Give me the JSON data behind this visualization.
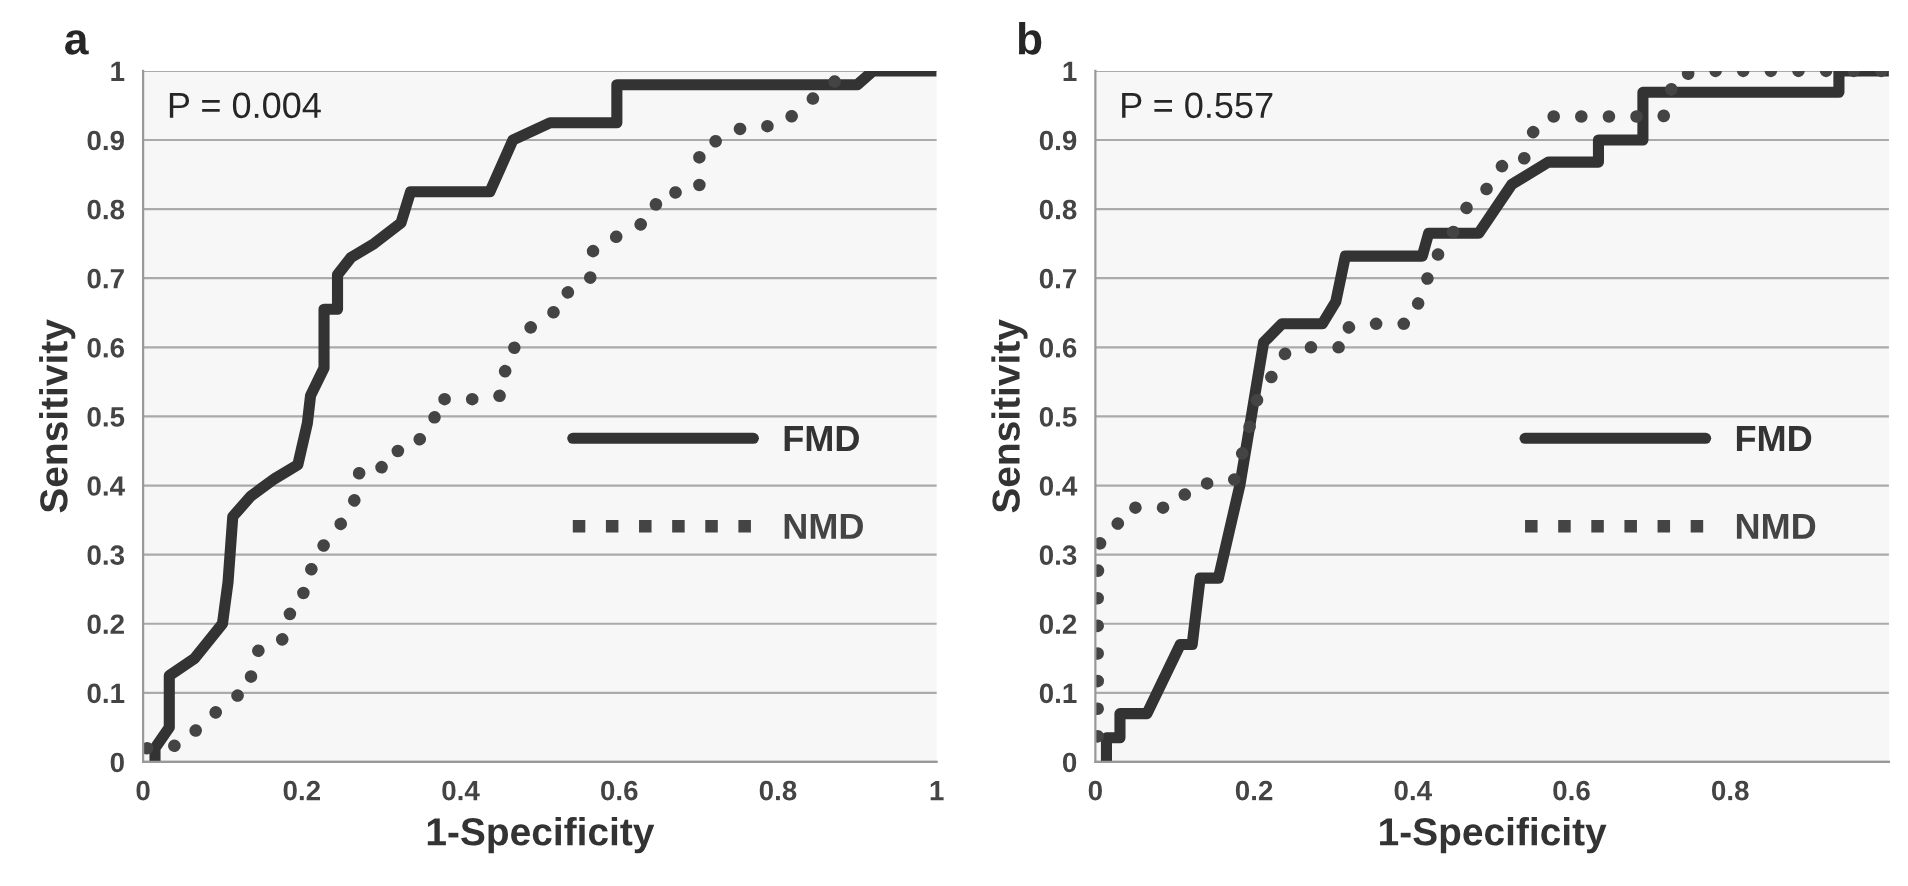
{
  "chart_data": [
    {
      "type": "line",
      "title": "a",
      "xlabel": "1-Specificity",
      "ylabel": "Sensitivity",
      "annotations": [
        "P = 0.004"
      ],
      "xlim": [
        0,
        1
      ],
      "ylim": [
        0,
        1
      ],
      "xticks": [
        0,
        0.2,
        0.4,
        0.6,
        0.8,
        1
      ],
      "yticks": [
        0,
        0.1,
        0.2,
        0.3,
        0.4,
        0.5,
        0.6,
        0.7,
        0.8,
        0.9,
        1
      ],
      "grid": "y",
      "legend": "right",
      "series": [
        {
          "name": "FMD",
          "color": "#333333",
          "line_style": "solid",
          "x": [
            0.015,
            0.015,
            0.033,
            0.033,
            0.065,
            0.1,
            0.107,
            0.113,
            0.136,
            0.166,
            0.195,
            0.207,
            0.211,
            0.228,
            0.228,
            0.245,
            0.245,
            0.262,
            0.291,
            0.325,
            0.337,
            0.437,
            0.466,
            0.513,
            0.597,
            0.597,
            0.9,
            0.92,
            1.0
          ],
          "values": [
            0,
            0.02,
            0.05,
            0.125,
            0.15,
            0.2,
            0.26,
            0.355,
            0.385,
            0.41,
            0.43,
            0.49,
            0.53,
            0.57,
            0.655,
            0.655,
            0.705,
            0.73,
            0.75,
            0.78,
            0.825,
            0.825,
            0.9,
            0.925,
            0.925,
            0.98,
            0.98,
            1.0,
            1.0
          ]
        },
        {
          "name": "NMD",
          "color": "#444444",
          "line_style": "dotted",
          "x": [
            0.005,
            0.03,
            0.057,
            0.075,
            0.096,
            0.117,
            0.136,
            0.136,
            0.147,
            0.174,
            0.185,
            0.185,
            0.202,
            0.202,
            0.219,
            0.228,
            0.246,
            0.263,
            0.27,
            0.273,
            0.3,
            0.308,
            0.337,
            0.354,
            0.367,
            0.368,
            0.397,
            0.425,
            0.45,
            0.45,
            0.467,
            0.468,
            0.481,
            0.5,
            0.517,
            0.523,
            0.55,
            0.567,
            0.567,
            0.585,
            0.602,
            0.623,
            0.644,
            0.648,
            0.676,
            0.701,
            0.701,
            0.701,
            0.726,
            0.747,
            0.772,
            0.801,
            0.818,
            0.833,
            0.883,
            0.9
          ],
          "values": [
            0.02,
            0.02,
            0.03,
            0.06,
            0.075,
            0.095,
            0.105,
            0.14,
            0.165,
            0.175,
            0.195,
            0.225,
            0.24,
            0.27,
            0.285,
            0.315,
            0.34,
            0.365,
            0.395,
            0.425,
            0.425,
            0.45,
            0.45,
            0.475,
            0.49,
            0.525,
            0.525,
            0.525,
            0.53,
            0.56,
            0.575,
            0.605,
            0.625,
            0.635,
            0.65,
            0.675,
            0.685,
            0.705,
            0.74,
            0.75,
            0.765,
            0.775,
            0.79,
            0.82,
            0.825,
            0.83,
            0.86,
            0.89,
            0.9,
            0.915,
            0.92,
            0.92,
            0.935,
            0.95,
            0.995,
            1.0
          ]
        }
      ]
    },
    {
      "type": "line",
      "title": "b",
      "xlabel": "1-Specificity",
      "ylabel": "Sensitivity",
      "annotations": [
        "P = 0.557"
      ],
      "xlim": [
        0,
        1
      ],
      "ylim": [
        0,
        1
      ],
      "xticks": [
        0,
        0.2,
        0.4,
        0.6,
        0.8
      ],
      "yticks": [
        0,
        0.1,
        0.2,
        0.3,
        0.4,
        0.5,
        0.6,
        0.7,
        0.8,
        0.9,
        1
      ],
      "grid": "y",
      "legend": "right",
      "series": [
        {
          "name": "FMD",
          "color": "#333333",
          "line_style": "solid",
          "x": [
            0.014,
            0.014,
            0.031,
            0.031,
            0.065,
            0.107,
            0.122,
            0.132,
            0.155,
            0.182,
            0.196,
            0.202,
            0.212,
            0.235,
            0.286,
            0.303,
            0.315,
            0.412,
            0.42,
            0.483,
            0.525,
            0.571,
            0.634,
            0.634,
            0.69,
            0.69,
            0.937,
            0.937,
            1.0
          ],
          "values": [
            0,
            0.035,
            0.035,
            0.07,
            0.07,
            0.17,
            0.17,
            0.266,
            0.266,
            0.4,
            0.496,
            0.538,
            0.607,
            0.634,
            0.634,
            0.666,
            0.732,
            0.732,
            0.765,
            0.765,
            0.836,
            0.868,
            0.868,
            0.9,
            0.9,
            0.969,
            0.969,
            1.0,
            1.0
          ]
        },
        {
          "name": "NMD",
          "color": "#444444",
          "line_style": "dotted",
          "x": [
            0.003,
            0.003,
            0.003,
            0.004,
            0.014,
            0.034,
            0.04,
            0.07,
            0.098,
            0.112,
            0.124,
            0.154,
            0.176,
            0.206,
            0.227,
            0.235,
            0.254,
            0.282,
            0.311,
            0.313,
            0.338,
            0.366,
            0.393,
            0.406,
            0.408,
            0.42,
            0.424,
            0.439,
            0.466,
            0.49,
            0.514,
            0.538,
            0.546,
            0.555,
            0.576,
            0.66,
            0.716,
            0.731,
            0.782,
            0.92,
            1.0
          ],
          "values": [
            0.037,
            0.138,
            0.257,
            0.312,
            0.335,
            0.349,
            0.368,
            0.368,
            0.368,
            0.386,
            0.403,
            0.403,
            0.409,
            0.533,
            0.565,
            0.588,
            0.6,
            0.6,
            0.6,
            0.627,
            0.634,
            0.634,
            0.634,
            0.652,
            0.683,
            0.702,
            0.727,
            0.741,
            0.8,
            0.824,
            0.865,
            0.865,
            0.893,
            0.922,
            0.934,
            0.934,
            0.934,
            0.994,
            1.0,
            1.0,
            1.0
          ]
        }
      ]
    }
  ]
}
